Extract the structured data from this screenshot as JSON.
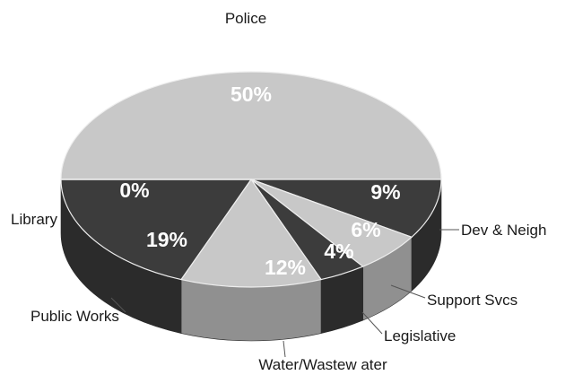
{
  "chart_data": {
    "type": "pie",
    "title": "",
    "slices": [
      {
        "label": "Police",
        "value": 50,
        "value_label": "50%",
        "color": "#c8c8c8"
      },
      {
        "label": "Dev & Neigh",
        "value": 9,
        "value_label": "9%",
        "color": "#3c3c3c"
      },
      {
        "label": "Support Svcs",
        "value": 6,
        "value_label": "6%",
        "color": "#c8c8c8"
      },
      {
        "label": "Legislative",
        "value": 4,
        "value_label": "4%",
        "color": "#3c3c3c"
      },
      {
        "label": "Water/Wastew ater",
        "value": 12,
        "value_label": "12%",
        "color": "#c8c8c8"
      },
      {
        "label": "Public Works",
        "value": 19,
        "value_label": "19%",
        "color": "#3c3c3c"
      },
      {
        "label": "Library",
        "value": 0,
        "value_label": "0%",
        "color": "#c8c8c8"
      }
    ],
    "style": "3d"
  }
}
